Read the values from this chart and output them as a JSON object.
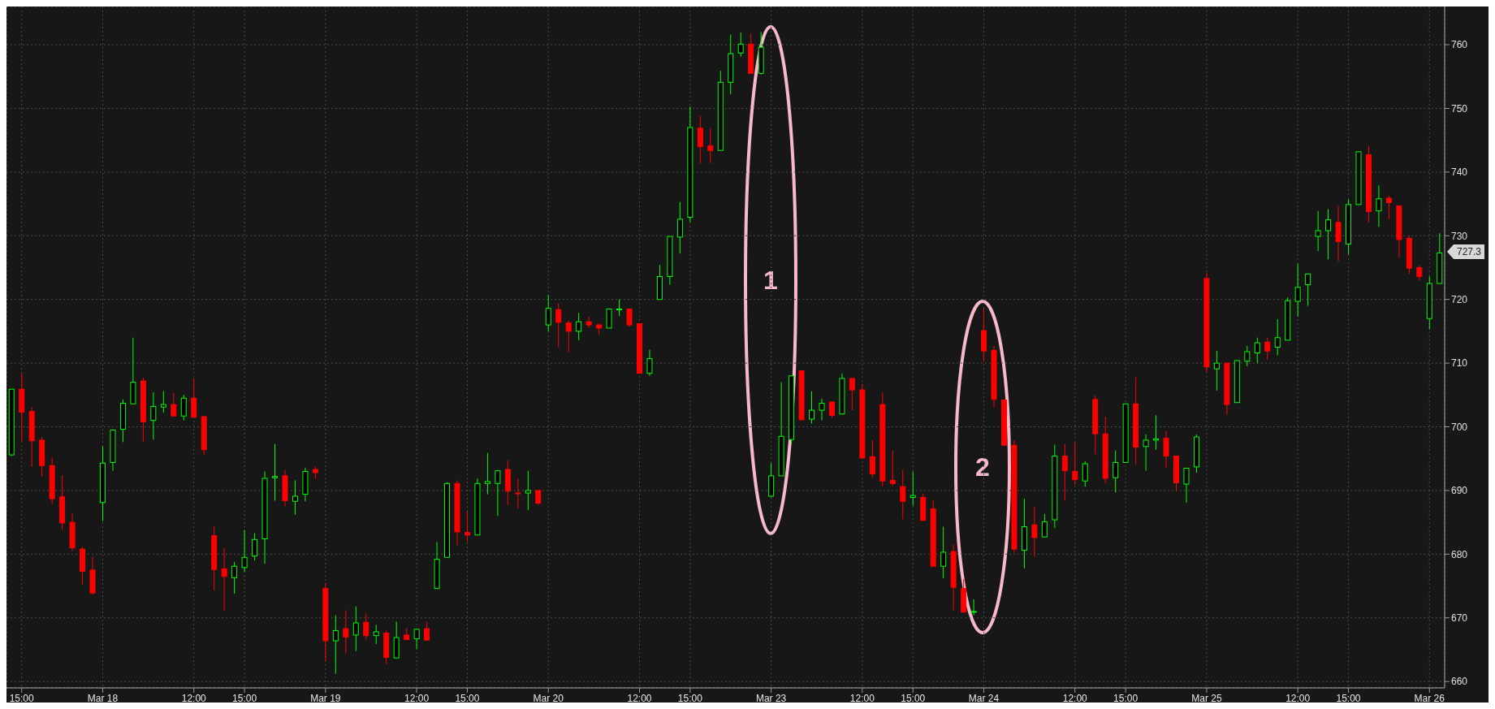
{
  "chart_data": {
    "type": "candlestick",
    "categories": [
      null,
      "15:00",
      null,
      null,
      null,
      null,
      null,
      null,
      null,
      "Mar 18",
      null,
      null,
      null,
      null,
      null,
      null,
      null,
      null,
      "12:00",
      null,
      null,
      null,
      null,
      "15:00",
      null,
      null,
      null,
      null,
      null,
      null,
      null,
      "Mar 19",
      null,
      null,
      null,
      null,
      null,
      null,
      null,
      null,
      "12:00",
      null,
      null,
      null,
      null,
      "15:00",
      null,
      null,
      null,
      null,
      null,
      null,
      null,
      "Mar 20",
      null,
      null,
      null,
      null,
      null,
      null,
      null,
      null,
      "12:00",
      null,
      null,
      null,
      null,
      "15:00",
      null,
      null,
      null,
      null,
      null,
      null,
      null,
      "Mar 23",
      null,
      null,
      null,
      null,
      null,
      null,
      null,
      null,
      "12:00",
      null,
      null,
      null,
      null,
      "15:00",
      null,
      null,
      null,
      null,
      null,
      null,
      "Mar 24",
      null,
      null,
      null,
      null,
      null,
      null,
      null,
      null,
      "12:00",
      null,
      null,
      null,
      null,
      "15:00",
      null,
      null,
      null,
      null,
      null,
      null,
      null,
      "Mar 25",
      null,
      null,
      null,
      null,
      null,
      null,
      null,
      null,
      "12:00",
      null,
      null,
      null,
      null,
      "15:00",
      null,
      null,
      null,
      null,
      null,
      null,
      null,
      "Mar 26",
      null
    ],
    "ohlc": [
      [
        695.6,
        705.9,
        695.4,
        705.9
      ],
      [
        705.9,
        708.4,
        697.8,
        702.3
      ],
      [
        702.4,
        703.1,
        693.7,
        697.8
      ],
      [
        697.9,
        698.4,
        692.2,
        693.9
      ],
      [
        693.9,
        695.2,
        687.8,
        688.7
      ],
      [
        689.0,
        692.4,
        683.8,
        684.9
      ],
      [
        685.0,
        686.4,
        680.5,
        681.0
      ],
      [
        680.8,
        681.1,
        675.2,
        677.3
      ],
      [
        677.5,
        679.6,
        673.6,
        673.9
      ],
      [
        688.1,
        696.9,
        685.2,
        694.3
      ],
      [
        694.4,
        699.5,
        693.1,
        699.5
      ],
      [
        699.6,
        704.3,
        697.6,
        703.7
      ],
      [
        703.6,
        714.0,
        703.6,
        707.0
      ],
      [
        707.2,
        707.7,
        697.6,
        700.8
      ],
      [
        701.0,
        705.4,
        698.0,
        703.2
      ],
      [
        703.1,
        705.6,
        702.2,
        703.5
      ],
      [
        703.5,
        705.3,
        701.7,
        701.7
      ],
      [
        701.7,
        705.0,
        701.0,
        704.5
      ],
      [
        704.5,
        707.6,
        701.5,
        701.5
      ],
      [
        701.6,
        701.6,
        695.6,
        696.4
      ],
      [
        682.9,
        684.4,
        674.3,
        677.6
      ],
      [
        677.7,
        681.0,
        671.1,
        676.5
      ],
      [
        676.3,
        678.8,
        673.8,
        678.1
      ],
      [
        677.9,
        683.8,
        677.2,
        679.5
      ],
      [
        679.7,
        683.3,
        679.0,
        682.3
      ],
      [
        682.4,
        693.0,
        678.5,
        691.9
      ],
      [
        692.0,
        697.3,
        688.4,
        692.2
      ],
      [
        692.3,
        693.2,
        687.5,
        688.4
      ],
      [
        688.3,
        691.6,
        686.2,
        689.1
      ],
      [
        689.4,
        693.6,
        688.3,
        693.0
      ],
      [
        693.3,
        693.8,
        691.8,
        692.8
      ],
      [
        674.6,
        675.4,
        663.2,
        666.4
      ],
      [
        666.4,
        670.4,
        661.2,
        668.0
      ],
      [
        668.3,
        671.2,
        664.4,
        667.0
      ],
      [
        667.3,
        671.8,
        664.8,
        669.2
      ],
      [
        669.3,
        670.7,
        666.6,
        667.2
      ],
      [
        667.2,
        668.9,
        665.9,
        667.8
      ],
      [
        667.6,
        668.0,
        662.7,
        663.8
      ],
      [
        663.7,
        669.4,
        663.7,
        666.9
      ],
      [
        667.3,
        668.4,
        666.5,
        666.6
      ],
      [
        666.7,
        668.2,
        665.1,
        668.2
      ],
      [
        668.3,
        669.4,
        666.5,
        666.5
      ],
      [
        674.6,
        681.9,
        674.6,
        679.2
      ],
      [
        679.5,
        691.3,
        679.5,
        691.1
      ],
      [
        691.1,
        691.6,
        681.4,
        683.5
      ],
      [
        683.4,
        686.7,
        681.9,
        683.0
      ],
      [
        683.0,
        691.9,
        683.0,
        691.1
      ],
      [
        691.1,
        695.9,
        689.4,
        691.4
      ],
      [
        691.1,
        693.2,
        686.0,
        693.1
      ],
      [
        693.3,
        694.7,
        687.7,
        689.9
      ],
      [
        689.6,
        691.9,
        687.2,
        689.5
      ],
      [
        689.6,
        693.1,
        686.9,
        690.0
      ],
      [
        690.0,
        690.0,
        687.7,
        688.0
      ],
      [
        716.0,
        720.7,
        715.0,
        718.6
      ],
      [
        718.4,
        719.4,
        712.5,
        716.4
      ],
      [
        716.3,
        716.7,
        711.7,
        715.0
      ],
      [
        715.0,
        717.9,
        713.6,
        716.5
      ],
      [
        716.5,
        717.3,
        715.6,
        716.0
      ],
      [
        716.0,
        716.2,
        714.5,
        715.5
      ],
      [
        715.5,
        718.5,
        715.5,
        718.5
      ],
      [
        718.4,
        720.0,
        717.4,
        718.5
      ],
      [
        718.5,
        718.5,
        715.7,
        716.0
      ],
      [
        716.2,
        716.2,
        708.4,
        708.4
      ],
      [
        708.4,
        712.1,
        708.0,
        710.7
      ],
      [
        720.0,
        725.4,
        720.0,
        723.6
      ],
      [
        723.6,
        729.9,
        722.3,
        729.9
      ],
      [
        729.8,
        735.3,
        727.2,
        732.6
      ],
      [
        732.9,
        750.3,
        732.1,
        747.0
      ],
      [
        746.9,
        748.8,
        741.4,
        744.0
      ],
      [
        744.1,
        746.8,
        741.4,
        743.4
      ],
      [
        743.4,
        755.9,
        743.4,
        754.1
      ],
      [
        754.1,
        761.6,
        752.2,
        758.6
      ],
      [
        758.7,
        761.9,
        758.1,
        760.1
      ],
      [
        760.1,
        761.8,
        755.5,
        755.5
      ],
      [
        755.5,
        762.0,
        755.3,
        759.6
      ],
      [
        689.1,
        694.3,
        688.9,
        692.3
      ],
      [
        692.3,
        707.0,
        692.3,
        698.5
      ],
      [
        698.0,
        708.0,
        697.3,
        708.0
      ],
      [
        708.8,
        708.8,
        701.1,
        701.1
      ],
      [
        701.2,
        705.6,
        700.5,
        702.6
      ],
      [
        702.6,
        704.4,
        701.0,
        703.7
      ],
      [
        703.9,
        703.9,
        701.4,
        701.8
      ],
      [
        702.0,
        708.4,
        702.0,
        707.6
      ],
      [
        707.6,
        707.6,
        702.6,
        705.8
      ],
      [
        705.8,
        706.7,
        695.1,
        695.1
      ],
      [
        695.3,
        697.9,
        692.0,
        692.6
      ],
      [
        703.5,
        705.4,
        690.7,
        691.5
      ],
      [
        691.6,
        696.3,
        690.7,
        691.1
      ],
      [
        690.6,
        693.2,
        685.5,
        688.3
      ],
      [
        688.9,
        693.0,
        687.6,
        689.2
      ],
      [
        688.9,
        689.5,
        685.3,
        685.3
      ],
      [
        687.1,
        688.5,
        678.1,
        678.1
      ],
      [
        678.1,
        684.3,
        676.2,
        680.3
      ],
      [
        680.4,
        681.5,
        671.2,
        674.8
      ],
      [
        674.6,
        676.1,
        670.8,
        670.9
      ],
      [
        670.9,
        672.9,
        670.4,
        671.0
      ],
      [
        715.1,
        718.6,
        710.2,
        711.9
      ],
      [
        712.0,
        712.7,
        703.0,
        704.3
      ],
      [
        704.2,
        704.2,
        697.1,
        697.1
      ],
      [
        697.1,
        697.9,
        680.2,
        680.8
      ],
      [
        680.6,
        688.7,
        677.8,
        684.3
      ],
      [
        684.6,
        687.5,
        679.6,
        682.6
      ],
      [
        682.7,
        686.3,
        682.7,
        685.1
      ],
      [
        685.4,
        697.2,
        684.1,
        695.4
      ],
      [
        695.4,
        697.3,
        688.4,
        693.1
      ],
      [
        693.0,
        697.6,
        690.9,
        691.7
      ],
      [
        691.5,
        694.6,
        690.6,
        694.2
      ],
      [
        704.3,
        704.9,
        695.7,
        698.9
      ],
      [
        698.9,
        701.6,
        691.1,
        691.9
      ],
      [
        692.0,
        696.3,
        689.7,
        694.4
      ],
      [
        694.4,
        703.6,
        694.4,
        703.6
      ],
      [
        703.6,
        707.8,
        694.1,
        696.8
      ],
      [
        696.9,
        698.8,
        693.1,
        697.9
      ],
      [
        697.9,
        701.8,
        696.4,
        698.1
      ],
      [
        698.2,
        699.4,
        693.5,
        695.4
      ],
      [
        695.4,
        695.4,
        689.9,
        691.2
      ],
      [
        691.0,
        693.5,
        688.1,
        693.5
      ],
      [
        693.7,
        698.8,
        692.8,
        698.4
      ],
      [
        723.3,
        724.2,
        708.6,
        709.4
      ],
      [
        709.1,
        711.9,
        705.7,
        710.0
      ],
      [
        710.0,
        710.0,
        701.9,
        703.5
      ],
      [
        703.8,
        710.4,
        703.8,
        710.4
      ],
      [
        710.3,
        712.7,
        709.5,
        711.8
      ],
      [
        711.6,
        714.0,
        710.0,
        713.2
      ],
      [
        713.3,
        714.0,
        710.5,
        711.9
      ],
      [
        712.5,
        716.9,
        711.2,
        714.0
      ],
      [
        713.6,
        720.3,
        713.6,
        719.8
      ],
      [
        719.7,
        725.6,
        717.3,
        721.9
      ],
      [
        722.3,
        724.0,
        719.0,
        724.0
      ],
      [
        729.9,
        733.9,
        727.6,
        730.8
      ],
      [
        730.8,
        734.2,
        726.3,
        732.5
      ],
      [
        732.1,
        734.7,
        726.0,
        729.1
      ],
      [
        728.7,
        735.7,
        727.1,
        734.9
      ],
      [
        734.9,
        743.2,
        734.9,
        743.2
      ],
      [
        742.7,
        744.1,
        732.1,
        733.8
      ],
      [
        733.9,
        737.9,
        731.4,
        735.8
      ],
      [
        735.9,
        736.3,
        732.6,
        735.2
      ],
      [
        734.7,
        734.7,
        726.6,
        729.4
      ],
      [
        729.6,
        730.0,
        724.0,
        724.9
      ],
      [
        725.0,
        725.3,
        723.0,
        723.6
      ],
      [
        717.0,
        723.6,
        715.3,
        722.5
      ],
      [
        722.5,
        730.4,
        722.5,
        727.3
      ]
    ],
    "colors": [
      "#00ff00",
      "#ff0000",
      "#ff0000",
      "#ff0000",
      "#ff0000",
      "#ff0000",
      "#ff0000",
      "#ff0000",
      "#ff0000",
      "#00ff00",
      "#00ff00",
      "#00ff00",
      "#00ff00",
      "#ff0000",
      "#00ff00",
      "#00ff00",
      "#ff0000",
      "#00ff00",
      "#ff0000",
      "#ff0000",
      "#ff0000",
      "#ff0000",
      "#00ff00",
      "#00ff00",
      "#00ff00",
      "#00ff00",
      "#00ff00",
      "#ff0000",
      "#00ff00",
      "#00ff00",
      "#ff0000",
      "#ff0000",
      "#00ff00",
      "#ff0000",
      "#00ff00",
      "#ff0000",
      "#00ff00",
      "#ff0000",
      "#00ff00",
      "#ff0000",
      "#00ff00",
      "#ff0000",
      "#00ff00",
      "#00ff00",
      "#ff0000",
      "#ff0000",
      "#00ff00",
      "#00ff00",
      "#00ff00",
      "#ff0000",
      "#ff0000",
      "#00ff00",
      "#ff0000",
      "#00ff00",
      "#ff0000",
      "#ff0000",
      "#00ff00",
      "#ff0000",
      "#ff0000",
      "#00ff00",
      "#00ff00",
      "#ff0000",
      "#ff0000",
      "#00ff00",
      "#00ff00",
      "#00ff00",
      "#00ff00",
      "#00ff00",
      "#ff0000",
      "#ff0000",
      "#00ff00",
      "#00ff00",
      "#00ff00",
      "#ff0000",
      "#00ff00",
      "#00ff00",
      "#00ff00",
      "#00ff00",
      "#ff0000",
      "#00ff00",
      "#00ff00",
      "#ff0000",
      "#00ff00",
      "#ff0000",
      "#ff0000",
      "#ff0000",
      "#ff0000",
      "#ff0000",
      "#ff0000",
      "#00ff00",
      "#ff0000",
      "#ff0000",
      "#00ff00",
      "#ff0000",
      "#ff0000",
      "#00ff00",
      "#ff0000",
      "#ff0000",
      "#ff0000",
      "#ff0000",
      "#00ff00",
      "#ff0000",
      "#00ff00",
      "#00ff00",
      "#ff0000",
      "#ff0000",
      "#00ff00",
      "#ff0000",
      "#ff0000",
      "#00ff00",
      "#00ff00",
      "#ff0000",
      "#00ff00",
      "#00ff00",
      "#ff0000",
      "#ff0000",
      "#00ff00",
      "#00ff00",
      "#ff0000",
      "#00ff00",
      "#ff0000",
      "#00ff00",
      "#00ff00",
      "#00ff00",
      "#ff0000",
      "#00ff00",
      "#00ff00",
      "#00ff00",
      "#00ff00",
      "#00ff00",
      "#00ff00",
      "#ff0000",
      "#00ff00",
      "#00ff00",
      "#ff0000",
      "#00ff00",
      "#ff0000",
      "#ff0000",
      "#ff0000",
      "#ff0000",
      "#00ff00",
      "#00ff00"
    ],
    "ylim": [
      659,
      766
    ],
    "yticks": [
      660,
      670,
      680,
      690,
      700,
      710,
      720,
      730,
      740,
      750,
      760
    ],
    "grid": true,
    "annotations": [
      "1",
      "2",
      "727.3"
    ]
  }
}
